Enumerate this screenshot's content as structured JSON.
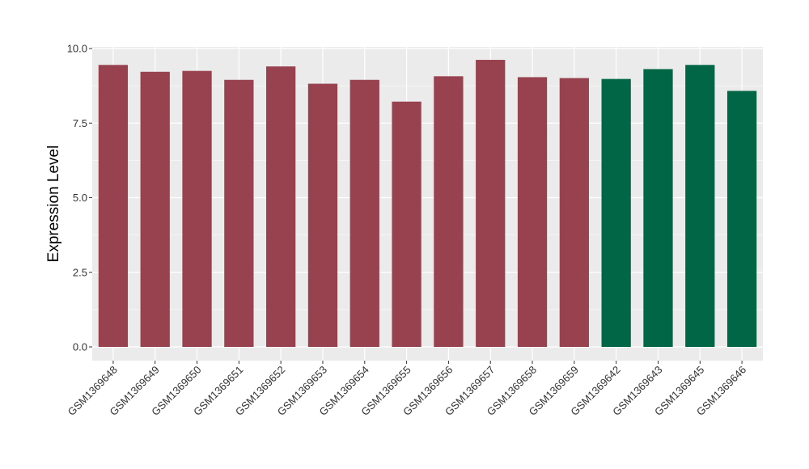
{
  "chart_data": {
    "type": "bar",
    "title": "",
    "xlabel": "",
    "ylabel": "Expression Level",
    "ylim": [
      0,
      10.0
    ],
    "yticks": [
      "0.0",
      "2.5",
      "5.0",
      "7.5",
      "10.0"
    ],
    "grid": true,
    "categories": [
      "GSM1369648",
      "GSM1369649",
      "GSM1369650",
      "GSM1369651",
      "GSM1369652",
      "GSM1369653",
      "GSM1369654",
      "GSM1369655",
      "GSM1369656",
      "GSM1369657",
      "GSM1369658",
      "GSM1369659",
      "GSM1369642",
      "GSM1369643",
      "GSM1369645",
      "GSM1369646"
    ],
    "values": [
      9.45,
      9.22,
      9.25,
      8.95,
      9.4,
      8.82,
      8.95,
      8.22,
      9.07,
      9.62,
      9.04,
      9.01,
      8.98,
      9.31,
      9.45,
      8.58
    ],
    "groups": [
      "a",
      "a",
      "a",
      "a",
      "a",
      "a",
      "a",
      "a",
      "a",
      "a",
      "a",
      "a",
      "b",
      "b",
      "b",
      "b"
    ],
    "group_colors": {
      "a": "#99424f",
      "b": "#006645"
    },
    "panel_background": "#ebebeb",
    "grid_color": "#ffffff"
  }
}
